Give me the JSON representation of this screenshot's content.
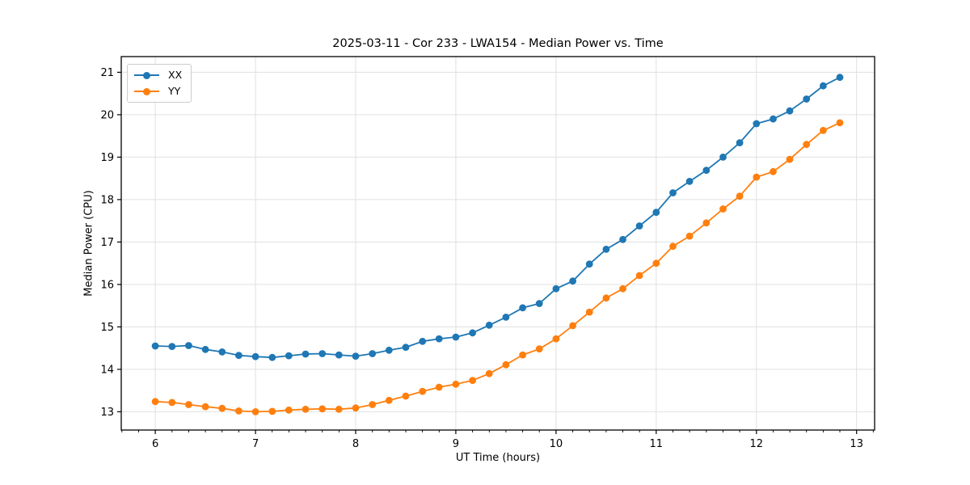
{
  "chart_data": {
    "type": "line",
    "title": "2025-03-11 - Cor 233 - LWA154 - Median Power vs. Time",
    "xlabel": "UT Time (hours)",
    "ylabel": "Median Power (CPU)",
    "xlim": [
      5.66,
      13.18
    ],
    "ylim": [
      12.57,
      21.37
    ],
    "x_major_ticks": [
      6,
      7,
      8,
      9,
      10,
      11,
      12,
      13
    ],
    "y_major_ticks": [
      13,
      14,
      15,
      16,
      17,
      18,
      19,
      20,
      21
    ],
    "x_minor_ticks_per_hour": 6,
    "grid": "major-both",
    "grid_color": "#e0e0e0",
    "background": "#ffffff",
    "legend_position": "upper-left",
    "x": [
      6.0,
      6.167,
      6.333,
      6.5,
      6.667,
      6.833,
      7.0,
      7.167,
      7.333,
      7.5,
      7.667,
      7.833,
      8.0,
      8.167,
      8.333,
      8.5,
      8.667,
      8.833,
      9.0,
      9.167,
      9.333,
      9.5,
      9.667,
      9.833,
      10.0,
      10.167,
      10.333,
      10.5,
      10.667,
      10.833,
      11.0,
      11.167,
      11.333,
      11.5,
      11.667,
      11.833,
      12.0,
      12.167,
      12.333,
      12.5,
      12.667,
      12.833
    ],
    "series": [
      {
        "name": "XX",
        "color": "#1f77b4",
        "marker": "circle",
        "values": [
          14.55,
          14.54,
          14.56,
          14.47,
          14.41,
          14.33,
          14.3,
          14.28,
          14.32,
          14.36,
          14.37,
          14.34,
          14.31,
          14.37,
          14.45,
          14.52,
          14.66,
          14.72,
          14.76,
          14.86,
          15.04,
          15.23,
          15.45,
          15.55,
          15.9,
          16.08,
          16.48,
          16.83,
          17.06,
          17.38,
          17.7,
          18.16,
          18.43,
          18.69,
          19.0,
          19.34,
          19.79,
          19.9,
          20.09,
          20.37,
          20.68,
          20.88
        ]
      },
      {
        "name": "YY",
        "color": "#ff7f0e",
        "marker": "circle",
        "values": [
          13.24,
          13.22,
          13.17,
          13.12,
          13.08,
          13.02,
          13.0,
          13.01,
          13.04,
          13.06,
          13.07,
          13.06,
          13.09,
          13.17,
          13.27,
          13.37,
          13.48,
          13.58,
          13.65,
          13.74,
          13.9,
          14.11,
          14.34,
          14.48,
          14.72,
          15.03,
          15.35,
          15.68,
          15.9,
          16.21,
          16.5,
          16.9,
          17.14,
          17.45,
          17.78,
          18.08,
          18.53,
          18.66,
          18.95,
          19.3,
          19.63,
          19.81
        ]
      }
    ]
  }
}
